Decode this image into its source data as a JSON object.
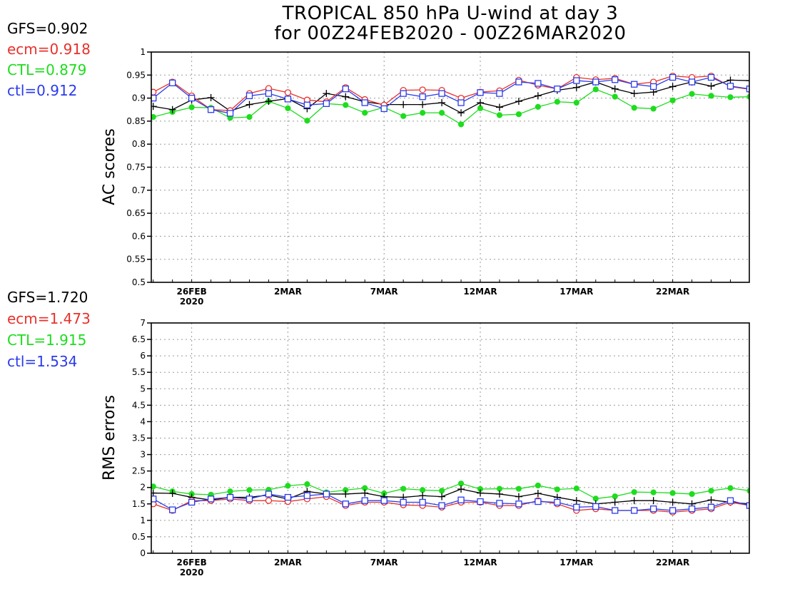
{
  "title": [
    "TROPICAL 850 hPa U-wind at day 3",
    "for 00Z24FEB2020 - 00Z26MAR2020"
  ],
  "colors": {
    "GFS": "#000000",
    "ecm": "#e8312b",
    "CTL": "#1edc1e",
    "ctl": "#2b3bea"
  },
  "chart_data": [
    {
      "type": "line",
      "ylabel": "AC scores",
      "ylim": [
        0.5,
        1
      ],
      "yticks": [
        "0.5",
        "0.55",
        "0.6",
        "0.65",
        "0.7",
        "0.75",
        "0.8",
        "0.85",
        "0.9",
        "0.95",
        "1"
      ],
      "x": [
        "24FEB",
        "25FEB",
        "26FEB",
        "27FEB",
        "28FEB",
        "29FEB",
        "1MAR",
        "2MAR",
        "3MAR",
        "4MAR",
        "5MAR",
        "6MAR",
        "7MAR",
        "8MAR",
        "9MAR",
        "10MAR",
        "11MAR",
        "12MAR",
        "13MAR",
        "14MAR",
        "15MAR",
        "16MAR",
        "17MAR",
        "18MAR",
        "19MAR",
        "20MAR",
        "21MAR",
        "22MAR",
        "23MAR",
        "24MAR",
        "25MAR",
        "26MAR"
      ],
      "xtick_labels": [
        {
          "x": "26FEB",
          "label": "26FEB",
          "sublabel": "2020"
        },
        {
          "x": "2MAR",
          "label": "2MAR"
        },
        {
          "x": "7MAR",
          "label": "7MAR"
        },
        {
          "x": "12MAR",
          "label": "12MAR"
        },
        {
          "x": "17MAR",
          "label": "17MAR"
        },
        {
          "x": "22MAR",
          "label": "22MAR"
        }
      ],
      "grid": true,
      "stats": [
        {
          "name": "GFS",
          "text": "GFS=0.902"
        },
        {
          "name": "ecm",
          "text": "ecm=0.918"
        },
        {
          "name": "CTL",
          "text": "CTL=0.879"
        },
        {
          "name": "ctl",
          "text": "ctl=0.912"
        }
      ],
      "series": [
        {
          "name": "GFS",
          "marker": "plus",
          "values": [
            0.882,
            0.875,
            0.896,
            0.901,
            0.872,
            0.886,
            0.893,
            0.899,
            0.877,
            0.91,
            0.903,
            0.892,
            0.886,
            0.886,
            0.886,
            0.89,
            0.868,
            0.89,
            0.88,
            0.893,
            0.905,
            0.917,
            0.923,
            0.935,
            0.92,
            0.91,
            0.913,
            0.925,
            0.935,
            0.926,
            0.939,
            0.938
          ]
        },
        {
          "name": "ecm",
          "marker": "circle-open",
          "values": [
            0.913,
            0.935,
            0.905,
            0.875,
            0.873,
            0.91,
            0.921,
            0.912,
            0.896,
            0.892,
            0.923,
            0.897,
            0.885,
            0.917,
            0.918,
            0.917,
            0.9,
            0.913,
            0.916,
            0.939,
            0.928,
            0.92,
            0.945,
            0.94,
            0.943,
            0.93,
            0.935,
            0.948,
            0.945,
            0.948,
            0.925,
            0.919
          ]
        },
        {
          "name": "CTL",
          "marker": "dot",
          "values": [
            0.859,
            0.87,
            0.88,
            0.879,
            0.857,
            0.859,
            0.893,
            0.878,
            0.851,
            0.888,
            0.885,
            0.868,
            0.88,
            0.861,
            0.868,
            0.868,
            0.843,
            0.878,
            0.863,
            0.865,
            0.881,
            0.892,
            0.89,
            0.919,
            0.903,
            0.879,
            0.877,
            0.895,
            0.909,
            0.905,
            0.902,
            0.903
          ]
        },
        {
          "name": "ctl",
          "marker": "square-open",
          "values": [
            0.9,
            0.933,
            0.9,
            0.875,
            0.867,
            0.905,
            0.91,
            0.898,
            0.885,
            0.888,
            0.92,
            0.89,
            0.877,
            0.91,
            0.903,
            0.91,
            0.89,
            0.912,
            0.91,
            0.935,
            0.932,
            0.92,
            0.938,
            0.935,
            0.94,
            0.93,
            0.925,
            0.945,
            0.935,
            0.945,
            0.926,
            0.92
          ]
        }
      ]
    },
    {
      "type": "line",
      "ylabel": "RMS errors",
      "ylim": [
        0,
        7
      ],
      "yticks": [
        "0",
        "0.5",
        "1",
        "1.5",
        "2",
        "2.5",
        "3",
        "3.5",
        "4",
        "4.5",
        "5",
        "5.5",
        "6",
        "6.5",
        "7"
      ],
      "x": [
        "24FEB",
        "25FEB",
        "26FEB",
        "27FEB",
        "28FEB",
        "29FEB",
        "1MAR",
        "2MAR",
        "3MAR",
        "4MAR",
        "5MAR",
        "6MAR",
        "7MAR",
        "8MAR",
        "9MAR",
        "10MAR",
        "11MAR",
        "12MAR",
        "13MAR",
        "14MAR",
        "15MAR",
        "16MAR",
        "17MAR",
        "18MAR",
        "19MAR",
        "20MAR",
        "21MAR",
        "22MAR",
        "23MAR",
        "24MAR",
        "25MAR",
        "26MAR"
      ],
      "xtick_labels": [
        {
          "x": "26FEB",
          "label": "26FEB",
          "sublabel": "2020"
        },
        {
          "x": "2MAR",
          "label": "2MAR"
        },
        {
          "x": "7MAR",
          "label": "7MAR"
        },
        {
          "x": "12MAR",
          "label": "12MAR"
        },
        {
          "x": "17MAR",
          "label": "17MAR"
        },
        {
          "x": "22MAR",
          "label": "22MAR"
        }
      ],
      "grid": true,
      "stats": [
        {
          "name": "GFS",
          "text": "GFS=1.720"
        },
        {
          "name": "ecm",
          "text": "ecm=1.473"
        },
        {
          "name": "CTL",
          "text": "CTL=1.915"
        },
        {
          "name": "ctl",
          "text": "ctl=1.534"
        }
      ],
      "series": [
        {
          "name": "GFS",
          "marker": "plus",
          "values": [
            1.83,
            1.82,
            1.7,
            1.62,
            1.7,
            1.7,
            1.77,
            1.65,
            1.88,
            1.8,
            1.8,
            1.83,
            1.72,
            1.7,
            1.75,
            1.72,
            1.95,
            1.83,
            1.8,
            1.72,
            1.82,
            1.7,
            1.6,
            1.5,
            1.55,
            1.6,
            1.6,
            1.55,
            1.5,
            1.62,
            1.55,
            1.5
          ]
        },
        {
          "name": "ecm",
          "marker": "circle-open",
          "values": [
            1.5,
            1.3,
            1.6,
            1.6,
            1.65,
            1.6,
            1.6,
            1.57,
            1.65,
            1.72,
            1.45,
            1.55,
            1.55,
            1.47,
            1.45,
            1.4,
            1.55,
            1.55,
            1.45,
            1.45,
            1.6,
            1.5,
            1.3,
            1.35,
            1.3,
            1.3,
            1.3,
            1.25,
            1.3,
            1.35,
            1.55,
            1.45
          ]
        },
        {
          "name": "CTL",
          "marker": "dot",
          "values": [
            2.03,
            1.88,
            1.8,
            1.78,
            1.88,
            1.92,
            1.93,
            2.05,
            2.1,
            1.85,
            1.92,
            1.98,
            1.82,
            1.96,
            1.92,
            1.9,
            2.12,
            1.95,
            1.96,
            1.96,
            2.06,
            1.94,
            1.97,
            1.66,
            1.73,
            1.86,
            1.85,
            1.83,
            1.8,
            1.9,
            1.98,
            1.9
          ]
        },
        {
          "name": "ctl",
          "marker": "square-open",
          "values": [
            1.65,
            1.32,
            1.55,
            1.65,
            1.7,
            1.65,
            1.8,
            1.7,
            1.75,
            1.8,
            1.5,
            1.6,
            1.6,
            1.55,
            1.55,
            1.45,
            1.62,
            1.57,
            1.52,
            1.5,
            1.57,
            1.55,
            1.4,
            1.42,
            1.3,
            1.3,
            1.35,
            1.3,
            1.35,
            1.4,
            1.6,
            1.45
          ]
        }
      ]
    }
  ]
}
